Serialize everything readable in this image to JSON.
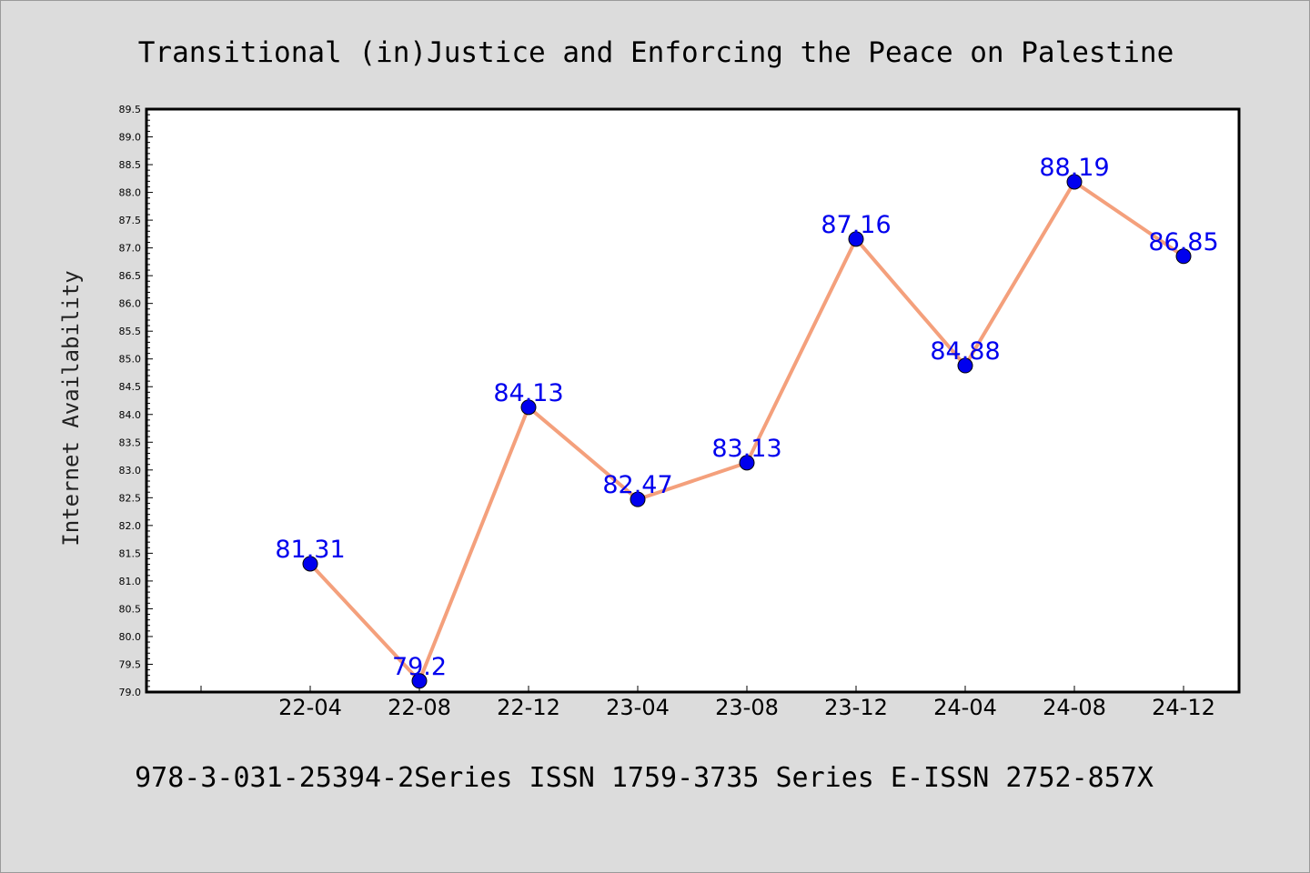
{
  "chart_data": {
    "type": "line",
    "title": "Transitional (in)Justice and Enforcing the Peace on Palestine",
    "subtitle": "978-3-031-25394-2Series ISSN 1759-3735 Series E-ISSN 2752-857X",
    "xlabel": "",
    "ylabel": "Internet Availability",
    "categories": [
      "22-04",
      "22-08",
      "22-12",
      "23-04",
      "23-08",
      "23-12",
      "24-04",
      "24-08",
      "24-12"
    ],
    "values": [
      81.31,
      79.2,
      84.13,
      82.47,
      83.13,
      87.16,
      84.88,
      88.19,
      86.85
    ],
    "data_labels": [
      "81.31",
      "79.2",
      "84.13",
      "82.47",
      "83.13",
      "87.16",
      "84.88",
      "88.19",
      "86.85"
    ],
    "ylim": [
      79.0,
      89.5
    ],
    "ytick_step": 0.5,
    "grid": false,
    "legend": "none",
    "colors": {
      "line": "#f4a07c",
      "marker": "#0000ee",
      "label": "#0000ee",
      "background": "#dcdcdc",
      "plot_background": "#ffffff"
    }
  }
}
